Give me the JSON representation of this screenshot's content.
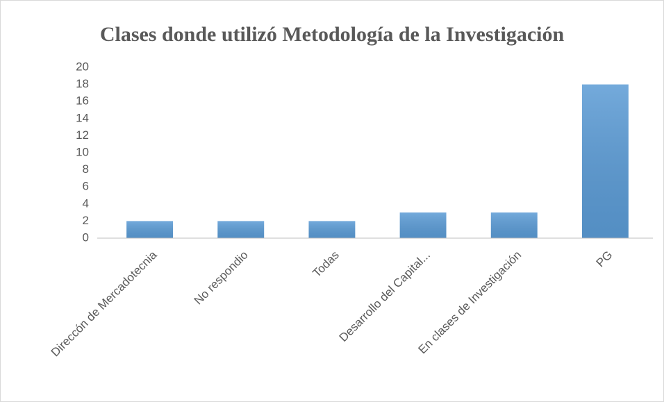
{
  "chart_data": {
    "type": "bar",
    "title": "Clases donde utilizó Metodología de la Investigación",
    "categories": [
      "Direccón de Mercadotecnia",
      "No respondio",
      "Todas",
      "Desarrollo del Capital...",
      "En clases de Investigación",
      "PG"
    ],
    "values": [
      2,
      2,
      2,
      3,
      3,
      18
    ],
    "color": "#5b9bd5",
    "ylim": [
      0,
      20
    ],
    "yticks": [
      0,
      2,
      4,
      6,
      8,
      10,
      12,
      14,
      16,
      18,
      20
    ],
    "grid": false
  }
}
